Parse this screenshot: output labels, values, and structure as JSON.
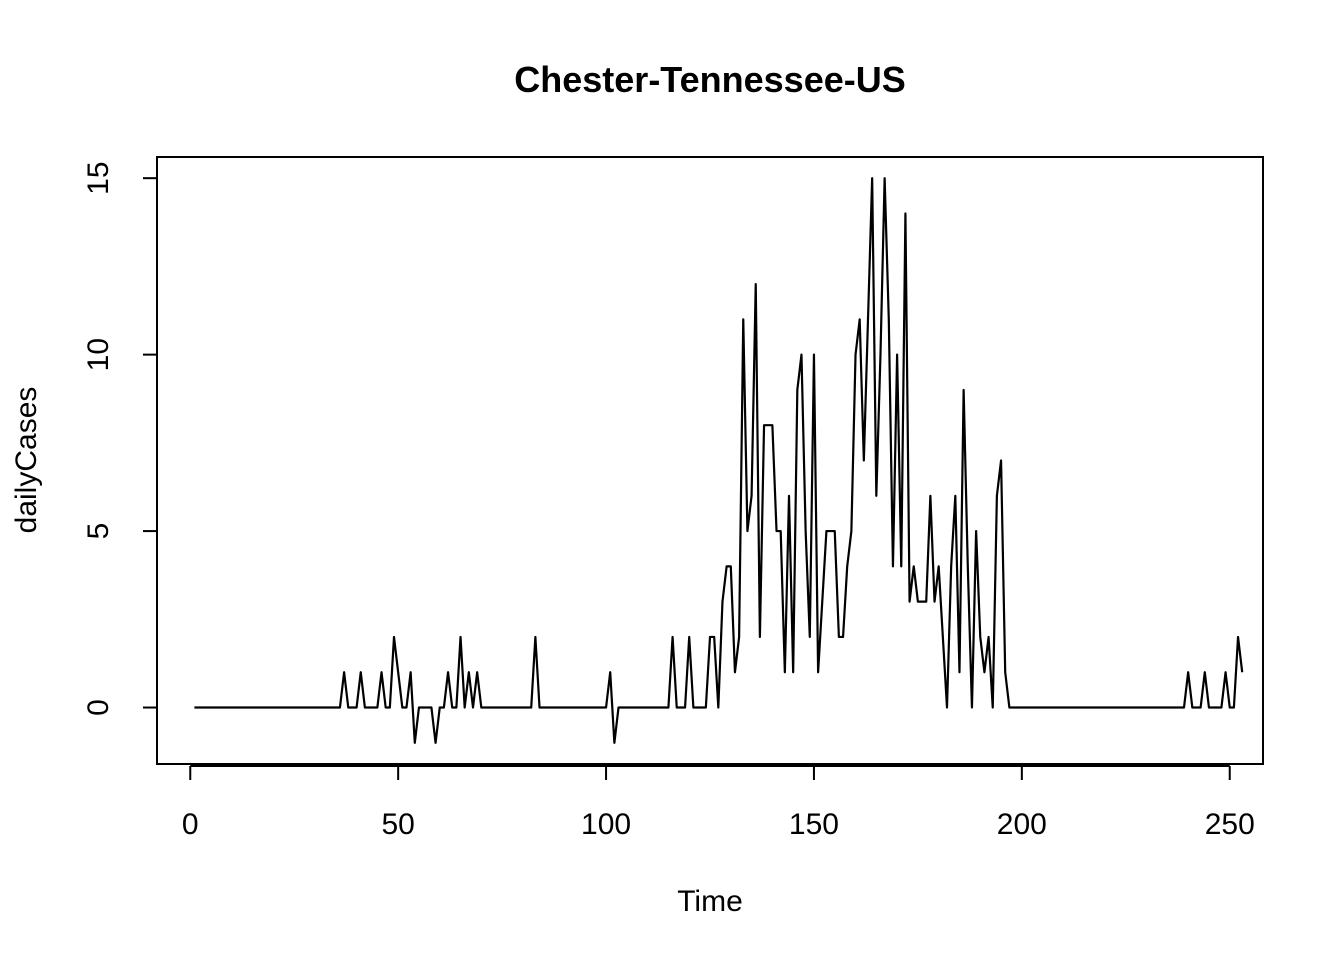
{
  "chart_data": {
    "type": "line",
    "title": "Chester-Tennessee-US",
    "xlabel": "Time",
    "ylabel": "dailyCases",
    "xlim": [
      -8,
      258
    ],
    "ylim": [
      -1.6,
      15.6
    ],
    "xticks": [
      0,
      50,
      100,
      150,
      200,
      250
    ],
    "yticks": [
      0,
      5,
      10,
      15
    ],
    "grid": false,
    "line_color": "#000000",
    "series": [
      {
        "x_start": 1,
        "values": [
          0,
          0,
          0,
          0,
          0,
          0,
          0,
          0,
          0,
          0,
          0,
          0,
          0,
          0,
          0,
          0,
          0,
          0,
          0,
          0,
          0,
          0,
          0,
          0,
          0,
          0,
          0,
          0,
          0,
          0,
          0,
          0,
          0,
          0,
          0,
          0,
          1,
          0,
          0,
          0,
          1,
          0,
          0,
          0,
          0,
          1,
          0,
          0,
          2,
          1,
          0,
          0,
          1,
          -1,
          0,
          0,
          0,
          0,
          -1,
          0,
          0,
          1,
          0,
          0,
          2,
          0,
          1,
          0,
          1,
          0,
          0,
          0,
          0,
          0,
          0,
          0,
          0,
          0,
          0,
          0,
          0,
          0,
          2,
          0,
          0,
          0,
          0,
          0,
          0,
          0,
          0,
          0,
          0,
          0,
          0,
          0,
          0,
          0,
          0,
          0,
          1,
          -1,
          0,
          0,
          0,
          0,
          0,
          0,
          0,
          0,
          0,
          0,
          0,
          0,
          0,
          2,
          0,
          0,
          0,
          2,
          0,
          0,
          0,
          0,
          2,
          2,
          0,
          3,
          4,
          4,
          1,
          2,
          11,
          5,
          6,
          12,
          2,
          8,
          8,
          8,
          5,
          5,
          1,
          6,
          1,
          9,
          10,
          5,
          2,
          10,
          1,
          3,
          5,
          5,
          5,
          2,
          2,
          4,
          5,
          10,
          11,
          7,
          11,
          15,
          6,
          10,
          15,
          11,
          4,
          10,
          4,
          14,
          3,
          4,
          3,
          3,
          3,
          6,
          3,
          4,
          2,
          0,
          4,
          6,
          1,
          9,
          4,
          0,
          5,
          2,
          1,
          2,
          0,
          6,
          7,
          1,
          0,
          0,
          0,
          0,
          0,
          0,
          0,
          0,
          0,
          0,
          0,
          0,
          0,
          0,
          0,
          0,
          0,
          0,
          0,
          0,
          0,
          0,
          0,
          0,
          0,
          0,
          0,
          0,
          0,
          0,
          0,
          0,
          0,
          0,
          0,
          0,
          0,
          0,
          0,
          0,
          0,
          0,
          0,
          1,
          0,
          0,
          0,
          1,
          0,
          0,
          0,
          0,
          1,
          0,
          0,
          2,
          1
        ]
      }
    ]
  }
}
